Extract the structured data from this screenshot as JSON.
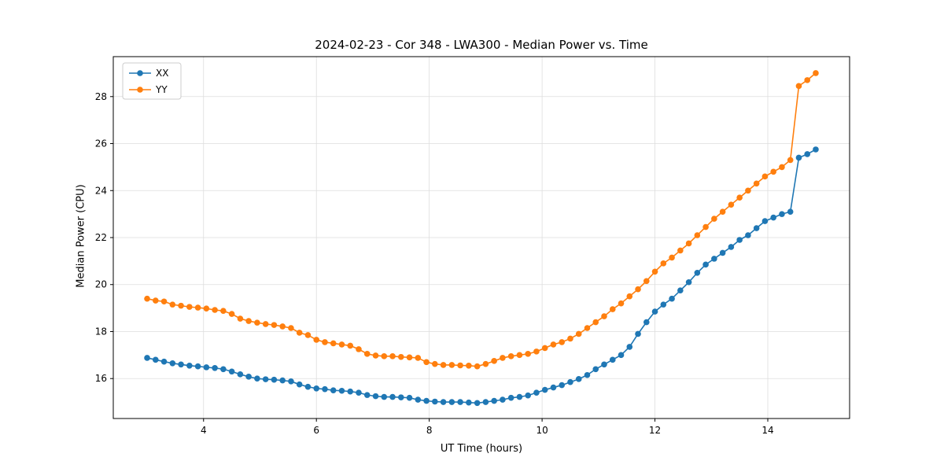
{
  "chart_data": {
    "type": "line",
    "title": "2024-02-23 - Cor 348 - LWA300 - Median Power vs. Time",
    "xlabel": "UT Time (hours)",
    "ylabel": "Median Power (CPU)",
    "xlim": [
      2.4,
      15.45
    ],
    "ylim": [
      14.3,
      29.7
    ],
    "xticks": [
      4,
      6,
      8,
      10,
      12,
      14
    ],
    "yticks": [
      16,
      18,
      20,
      22,
      24,
      26,
      28
    ],
    "grid": true,
    "grid_color": "#dddddd",
    "legend_position": "upper left",
    "marker": "o",
    "x": [
      3.0,
      3.15,
      3.3,
      3.45,
      3.6,
      3.75,
      3.9,
      4.05,
      4.2,
      4.35,
      4.5,
      4.65,
      4.8,
      4.95,
      5.1,
      5.25,
      5.4,
      5.55,
      5.7,
      5.85,
      6.0,
      6.15,
      6.3,
      6.45,
      6.6,
      6.75,
      6.9,
      7.05,
      7.2,
      7.35,
      7.5,
      7.65,
      7.8,
      7.95,
      8.1,
      8.25,
      8.4,
      8.55,
      8.7,
      8.85,
      9.0,
      9.15,
      9.3,
      9.45,
      9.6,
      9.75,
      9.9,
      10.05,
      10.2,
      10.35,
      10.5,
      10.65,
      10.8,
      10.95,
      11.1,
      11.25,
      11.4,
      11.55,
      11.7,
      11.85,
      12.0,
      12.15,
      12.3,
      12.45,
      12.6,
      12.75,
      12.9,
      13.05,
      13.2,
      13.35,
      13.5,
      13.65,
      13.8,
      13.95,
      14.1,
      14.25,
      14.4,
      14.55,
      14.7,
      14.85
    ],
    "series": [
      {
        "name": "XX",
        "color": "#1f77b4",
        "values": [
          16.88,
          16.8,
          16.72,
          16.65,
          16.6,
          16.55,
          16.52,
          16.48,
          16.45,
          16.4,
          16.3,
          16.18,
          16.08,
          16.0,
          15.97,
          15.95,
          15.92,
          15.88,
          15.75,
          15.65,
          15.58,
          15.55,
          15.5,
          15.48,
          15.45,
          15.4,
          15.3,
          15.25,
          15.22,
          15.22,
          15.2,
          15.18,
          15.1,
          15.05,
          15.02,
          15.0,
          15.0,
          15.0,
          14.98,
          14.96,
          15.0,
          15.05,
          15.1,
          15.18,
          15.22,
          15.28,
          15.4,
          15.52,
          15.62,
          15.72,
          15.85,
          15.98,
          16.15,
          16.4,
          16.6,
          16.8,
          17.0,
          17.35,
          17.9,
          18.4,
          18.85,
          19.15,
          19.4,
          19.75,
          20.1,
          20.5,
          20.85,
          21.1,
          21.35,
          21.6,
          21.9,
          22.1,
          22.4,
          22.7,
          22.85,
          23.0,
          23.1,
          25.4,
          25.55,
          25.75
        ]
      },
      {
        "name": "YY",
        "color": "#ff7f0e",
        "values": [
          19.4,
          19.32,
          19.28,
          19.15,
          19.1,
          19.05,
          19.02,
          18.98,
          18.92,
          18.88,
          18.75,
          18.55,
          18.45,
          18.38,
          18.32,
          18.28,
          18.22,
          18.15,
          17.95,
          17.85,
          17.65,
          17.55,
          17.5,
          17.45,
          17.4,
          17.25,
          17.05,
          16.98,
          16.95,
          16.95,
          16.92,
          16.9,
          16.88,
          16.7,
          16.62,
          16.58,
          16.58,
          16.56,
          16.55,
          16.52,
          16.62,
          16.75,
          16.88,
          16.95,
          17.0,
          17.05,
          17.15,
          17.3,
          17.45,
          17.55,
          17.7,
          17.9,
          18.15,
          18.4,
          18.65,
          18.95,
          19.2,
          19.5,
          19.8,
          20.15,
          20.55,
          20.9,
          21.15,
          21.45,
          21.75,
          22.1,
          22.45,
          22.8,
          23.1,
          23.4,
          23.7,
          24.0,
          24.3,
          24.6,
          24.8,
          25.0,
          25.3,
          28.45,
          28.7,
          29.0
        ]
      }
    ]
  }
}
